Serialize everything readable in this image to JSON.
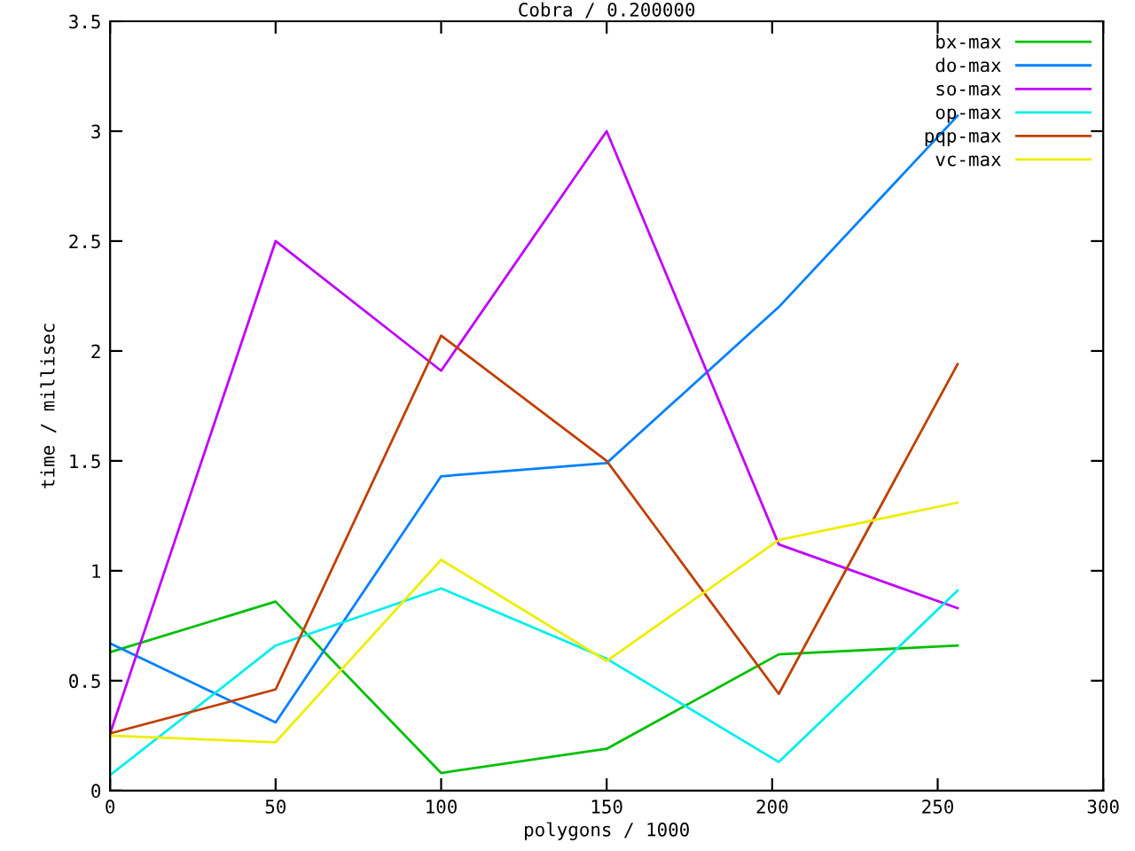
{
  "chart_data": {
    "type": "line",
    "title": "Cobra / 0.200000",
    "xlabel": "polygons / 1000",
    "ylabel": "time / millisec",
    "x": [
      0,
      50,
      100,
      150,
      202,
      256
    ],
    "series": [
      {
        "name": "bx-max",
        "color": "#00c000",
        "values": [
          0.63,
          0.86,
          0.08,
          0.19,
          0.62,
          0.66
        ]
      },
      {
        "name": "do-max",
        "color": "#0080ff",
        "values": [
          0.67,
          0.31,
          1.43,
          1.49,
          2.2,
          3.07
        ]
      },
      {
        "name": "so-max",
        "color": "#c000ff",
        "values": [
          0.26,
          2.5,
          1.91,
          3.0,
          1.12,
          0.83
        ]
      },
      {
        "name": "op-max",
        "color": "#00eeee",
        "values": [
          0.07,
          0.66,
          0.92,
          0.6,
          0.13,
          0.91
        ]
      },
      {
        "name": "pqp-max",
        "color": "#c04000",
        "values": [
          0.26,
          0.46,
          2.07,
          1.5,
          0.44,
          1.94
        ]
      },
      {
        "name": "vc-max",
        "color": "#eeee00",
        "values": [
          0.25,
          0.22,
          1.05,
          0.59,
          1.14,
          1.31
        ]
      }
    ],
    "xlim": [
      0,
      300
    ],
    "xticks": [
      0,
      50,
      100,
      150,
      200,
      250,
      300
    ],
    "ylim": [
      0,
      3.5
    ],
    "yticks": [
      0,
      0.5,
      1,
      1.5,
      2,
      2.5,
      3,
      3.5
    ],
    "grid": false,
    "legend": "top right",
    "marker": "none",
    "line_style": "solid"
  }
}
